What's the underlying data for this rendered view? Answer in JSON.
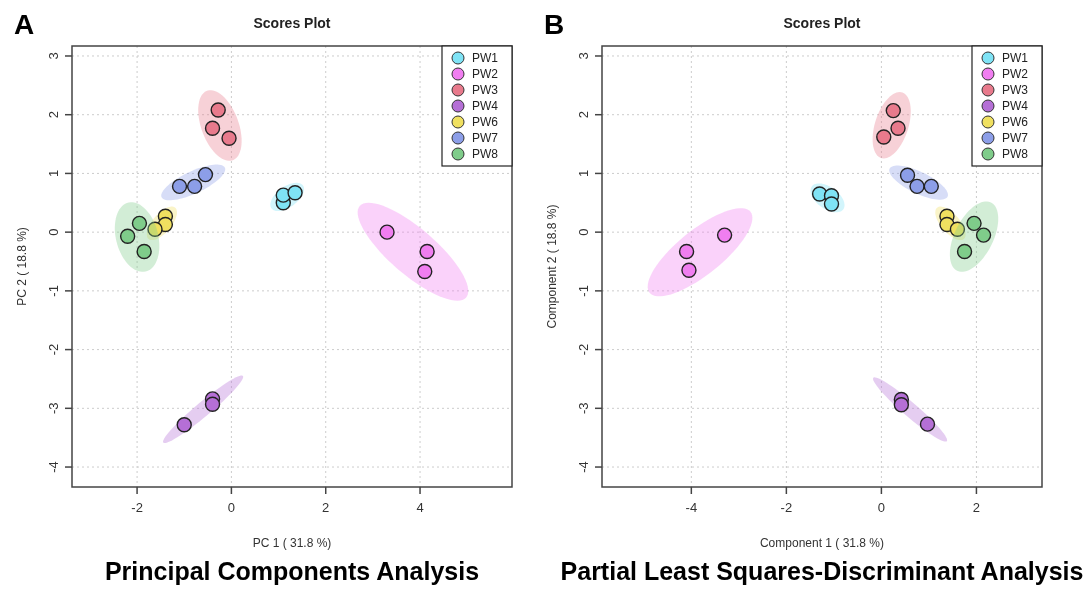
{
  "chart_data": [
    {
      "type": "scatter",
      "title": "Scores Plot",
      "subtitle": "Principal Components Analysis",
      "xlabel": "PC 1 ( 31.8 %)",
      "ylabel": "PC 2 ( 18.8 %)",
      "annotations": [
        "A"
      ],
      "xlim": [
        -3.38,
        5.95
      ],
      "ylim": [
        -4.34,
        3.17
      ],
      "xticks": [
        -2,
        0,
        2,
        4
      ],
      "yticks": [
        -4,
        -3,
        -2,
        -1,
        0,
        1,
        2,
        3
      ],
      "grid": true,
      "legend": "top right",
      "marker": "circle",
      "series": [
        {
          "name": "PW1",
          "color": "#7fe3f5",
          "x": [
            1.1,
            1.1,
            1.35
          ],
          "values": [
            0.5,
            0.63,
            0.67
          ]
        },
        {
          "name": "PW2",
          "color": "#f07ef0",
          "x": [
            3.3,
            4.15,
            4.1
          ],
          "values": [
            0,
            -0.33,
            -0.67
          ]
        },
        {
          "name": "PW3",
          "color": "#e87a8c",
          "x": [
            -0.28,
            -0.4,
            -0.05
          ],
          "values": [
            2.08,
            1.77,
            1.6
          ]
        },
        {
          "name": "PW4",
          "color": "#b56fd6",
          "x": [
            -0.4,
            -0.4,
            -1.0
          ],
          "values": [
            -2.84,
            -2.93,
            -3.28
          ]
        },
        {
          "name": "PW6",
          "color": "#f0e060",
          "x": [
            -1.4,
            -1.4,
            -1.62
          ],
          "values": [
            0.27,
            0.13,
            0.05
          ]
        },
        {
          "name": "PW7",
          "color": "#8c9ee8",
          "x": [
            -1.1,
            -0.78,
            -0.55
          ],
          "values": [
            0.78,
            0.78,
            0.98
          ]
        },
        {
          "name": "PW8",
          "color": "#7fcc8a",
          "x": [
            -1.95,
            -2.2,
            -1.85
          ],
          "values": [
            0.15,
            -0.07,
            -0.33
          ]
        }
      ]
    },
    {
      "type": "scatter",
      "title": "Scores Plot",
      "subtitle": "Partial Least Squares-Discriminant Analysis",
      "xlabel": "Component 1 ( 31.8 %)",
      "ylabel": "Component 2 ( 18.8 %)",
      "annotations": [
        "B"
      ],
      "xlim": [
        -5.88,
        3.38
      ],
      "ylim": [
        -4.34,
        3.17
      ],
      "xticks": [
        -4,
        -2,
        0,
        2
      ],
      "yticks": [
        -4,
        -3,
        -2,
        -1,
        0,
        1,
        2,
        3
      ],
      "grid": true,
      "legend": "top right",
      "marker": "circle",
      "series": [
        {
          "name": "PW1",
          "color": "#7fe3f5",
          "x": [
            -1.3,
            -1.05,
            -1.05
          ],
          "values": [
            0.65,
            0.62,
            0.48
          ]
        },
        {
          "name": "PW2",
          "color": "#f07ef0",
          "x": [
            -3.3,
            -4.1,
            -4.05
          ],
          "values": [
            -0.05,
            -0.33,
            -0.65
          ]
        },
        {
          "name": "PW3",
          "color": "#e87a8c",
          "x": [
            0.25,
            0.35,
            0.05
          ],
          "values": [
            2.07,
            1.77,
            1.62
          ]
        },
        {
          "name": "PW4",
          "color": "#b56fd6",
          "x": [
            0.42,
            0.42,
            0.97
          ],
          "values": [
            -2.85,
            -2.94,
            -3.27
          ]
        },
        {
          "name": "PW6",
          "color": "#f0e060",
          "x": [
            1.38,
            1.38,
            1.6
          ],
          "values": [
            0.27,
            0.13,
            0.05
          ]
        },
        {
          "name": "PW7",
          "color": "#8c9ee8",
          "x": [
            0.55,
            0.75,
            1.05
          ],
          "values": [
            0.97,
            0.78,
            0.78
          ]
        },
        {
          "name": "PW8",
          "color": "#7fcc8a",
          "x": [
            1.95,
            2.15,
            1.75
          ],
          "values": [
            0.15,
            -0.05,
            -0.33
          ]
        }
      ]
    }
  ]
}
